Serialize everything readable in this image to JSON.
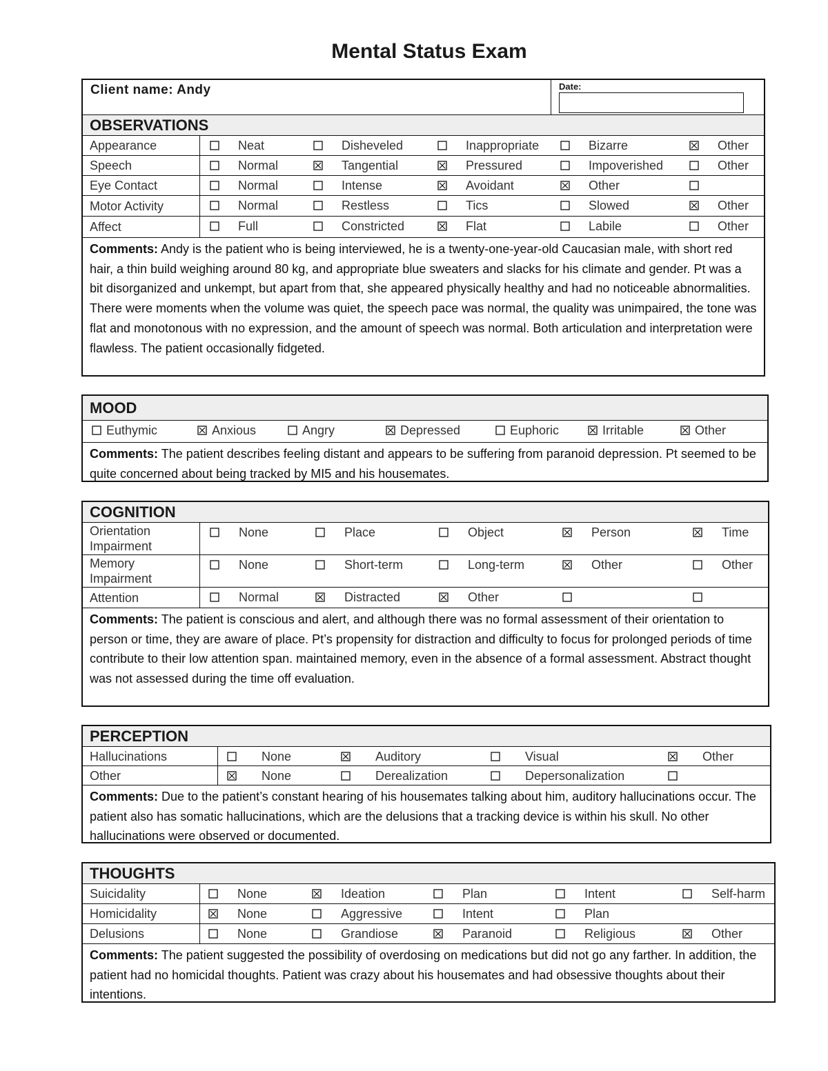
{
  "title": "Mental Status Exam",
  "client": {
    "label": "Client name: Andy"
  },
  "date": {
    "label": "Date:"
  },
  "sections": [
    {
      "heading": "OBSERVATIONS",
      "rows": [
        {
          "label": "Appearance",
          "options": [
            {
              "label": "Neat",
              "checked": false
            },
            {
              "label": "Disheveled",
              "checked": false
            },
            {
              "label": "Inappropriate",
              "checked": false
            },
            {
              "label": "Bizarre",
              "checked": false
            },
            {
              "label": "Other",
              "checked": true
            }
          ]
        },
        {
          "label": "Speech",
          "options": [
            {
              "label": "Normal",
              "checked": false
            },
            {
              "label": "Tangential",
              "checked": true
            },
            {
              "label": "Pressured",
              "checked": true
            },
            {
              "label": "Impoverished",
              "checked": false
            },
            {
              "label": "Other",
              "checked": false
            }
          ]
        },
        {
          "label": "Eye Contact",
          "options": [
            {
              "label": "Normal",
              "checked": false
            },
            {
              "label": "Intense",
              "checked": false
            },
            {
              "label": "Avoidant",
              "checked": true
            },
            {
              "label": "Other",
              "checked": true
            },
            {
              "checked": false
            }
          ]
        },
        {
          "label": "Motor Activity",
          "options": [
            {
              "label": "Normal",
              "checked": false
            },
            {
              "label": "Restless",
              "checked": false
            },
            {
              "label": "Tics",
              "checked": false
            },
            {
              "label": "Slowed",
              "checked": false
            },
            {
              "label": "Other",
              "checked": true
            }
          ]
        },
        {
          "label": "Affect",
          "options": [
            {
              "label": "Full",
              "checked": false
            },
            {
              "label": "Constricted",
              "checked": false
            },
            {
              "label": "Flat",
              "checked": true
            },
            {
              "label": "Labile",
              "checked": false
            },
            {
              "label": "Other",
              "checked": false
            }
          ]
        }
      ],
      "comments": {
        "label": "Comments:",
        "text": "Andy is the patient who is being interviewed, he is a twenty-one-year-old Caucasian male, with short red hair, a thin build weighing around 80 kg, and appropriate blue sweaters and slacks for his climate and gender. Pt was a bit disorganized and unkempt, but apart from that, she appeared physically healthy and had no noticeable abnormalities. There were moments when the volume was quiet, the speech pace was normal, the quality was unimpaired, the tone was flat and monotonous with no expression, and the amount of speech was normal. Both articulation and interpretation were flawless. The patient occasionally fidgeted."
      }
    },
    {
      "heading": "MOOD",
      "rows": [
        {
          "options": [
            {
              "label": "Euthymic",
              "checked": false
            },
            {
              "label": "Anxious",
              "checked": true
            },
            {
              "label": "Angry",
              "checked": false
            },
            {
              "label": "Depressed",
              "checked": true
            },
            {
              "label": "Euphoric",
              "checked": false
            },
            {
              "label": "Irritable",
              "checked": true
            },
            {
              "label": "Other",
              "checked": true
            }
          ]
        }
      ],
      "comments": {
        "label": "Comments:",
        "text": "The patient describes feeling distant and appears to be suffering from paranoid depression. Pt seemed to be quite concerned about being tracked by MI5 and his housemates."
      }
    },
    {
      "heading": "COGNITION",
      "rows": [
        {
          "label": "Orientation Impairment",
          "options": [
            {
              "label": "None",
              "checked": false
            },
            {
              "label": "Place",
              "checked": false
            },
            {
              "label": "Object",
              "checked": false
            },
            {
              "label": "Person",
              "checked": true
            },
            {
              "label": "Time",
              "checked": true
            }
          ]
        },
        {
          "label": "Memory Impairment",
          "options": [
            {
              "label": "None",
              "checked": false
            },
            {
              "label": "Short-term",
              "checked": false
            },
            {
              "label": "Long-term",
              "checked": false
            },
            {
              "label": "Other",
              "checked": true
            },
            {
              "label": "Other",
              "checked": false
            }
          ]
        },
        {
          "label": "Attention",
          "options": [
            {
              "label": "Normal",
              "checked": false
            },
            {
              "label": "Distracted",
              "checked": true
            },
            {
              "label": "Other",
              "checked": true
            },
            {
              "checked": false
            },
            {
              "checked": false
            }
          ]
        }
      ],
      "comments": {
        "label": "Comments:",
        "text": "The patient is conscious and alert, and although there was no formal assessment of their orientation to person or time, they are aware of place.  Pt’s propensity for distraction and difficulty to focus for prolonged periods of time contribute to their low attention span. maintained memory, even in the absence of a formal assessment. Abstract thought was not assessed during the time off evaluation."
      }
    },
    {
      "heading": "PERCEPTION",
      "rows": [
        {
          "label": "Hallucinations",
          "options": [
            {
              "label": "None",
              "checked": false
            },
            {
              "label": "Auditory",
              "checked": true
            },
            {
              "label": "Visual",
              "checked": false
            },
            {
              "label": "Other",
              "checked": true
            }
          ]
        },
        {
          "label": "Other",
          "options": [
            {
              "label": "None",
              "checked": true
            },
            {
              "label": "Derealization",
              "checked": false
            },
            {
              "label": "Depersonalization",
              "checked": false
            },
            {
              "checked": false
            }
          ]
        }
      ],
      "comments": {
        "label": "Comments:",
        "text": "Due to the patient’s constant hearing of his housemates talking about him, auditory hallucinations occur. The patient also has somatic hallucinations, which are the delusions that a tracking device is within his skull. No other hallucinations were observed or documented."
      }
    },
    {
      "heading": "THOUGHTS",
      "rows": [
        {
          "label": "Suicidality",
          "options": [
            {
              "label": "None",
              "checked": false
            },
            {
              "label": "Ideation",
              "checked": true
            },
            {
              "label": "Plan",
              "checked": false
            },
            {
              "label": "Intent",
              "checked": false
            },
            {
              "label": "Self-harm",
              "checked": false
            }
          ]
        },
        {
          "label": "Homicidality",
          "options": [
            {
              "label": "None",
              "checked": true
            },
            {
              "label": "Aggressive",
              "checked": false
            },
            {
              "label": "Intent",
              "checked": false
            },
            {
              "label": "Plan",
              "checked": false
            }
          ]
        },
        {
          "label": "Delusions",
          "options": [
            {
              "label": "None",
              "checked": false
            },
            {
              "label": "Grandiose",
              "checked": false
            },
            {
              "label": "Paranoid",
              "checked": true
            },
            {
              "label": "Religious",
              "checked": false
            },
            {
              "label": "Other",
              "checked": true
            }
          ]
        }
      ],
      "comments": {
        "label": "Comments:",
        "text": "The patient suggested the possibility of overdosing on medications but did not go any farther. In addition, the patient had no homicidal thoughts. Patient was crazy about his housemates and had obsessive thoughts about their intentions."
      }
    }
  ]
}
